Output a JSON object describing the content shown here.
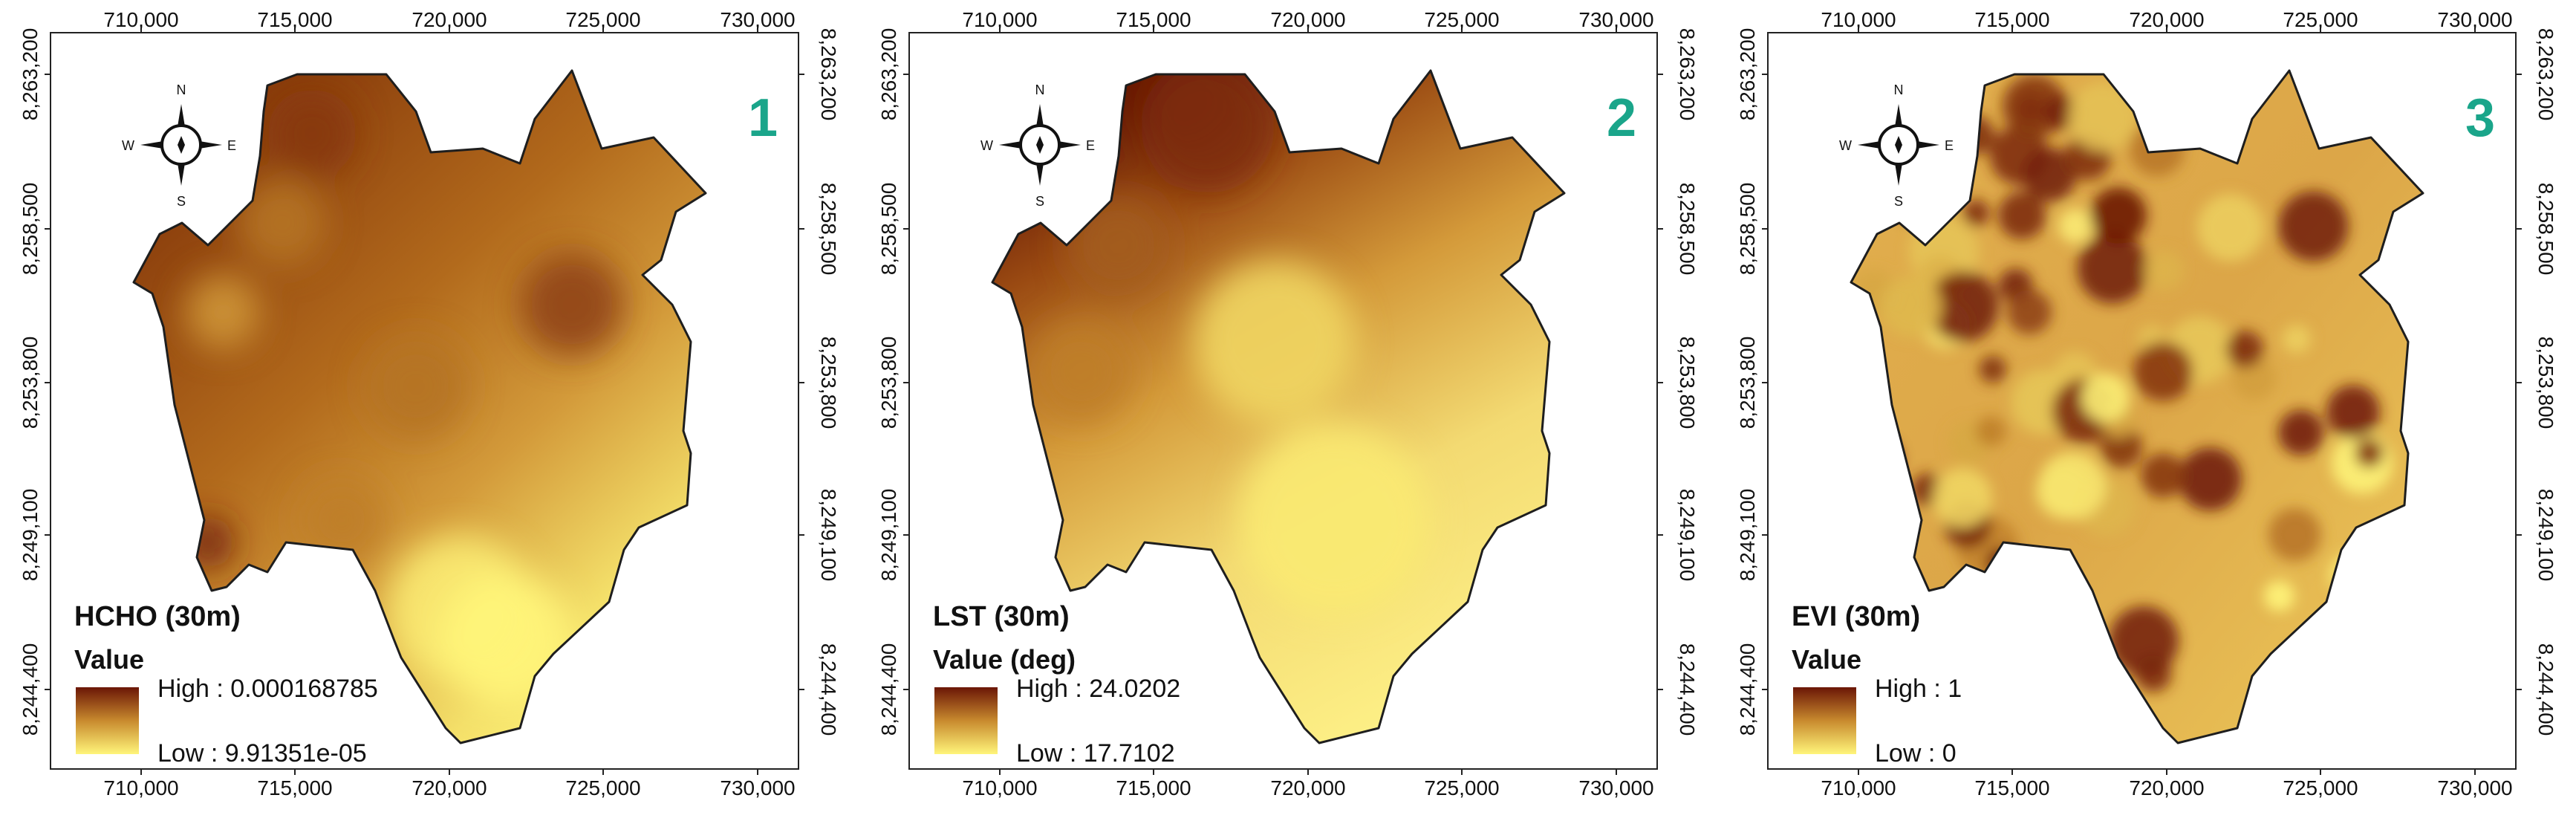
{
  "maps": [
    {
      "number": "1",
      "layer_title": "HCHO (30m)",
      "legend_label": "Value",
      "high_label": "High : 0.000168785",
      "low_label": "Low : 9.91351e-05",
      "variant": "hcho"
    },
    {
      "number": "2",
      "layer_title": "LST (30m)",
      "legend_label": "Value (deg)",
      "high_label": "High : 24.0202",
      "low_label": "Low : 17.7102",
      "variant": "lst"
    },
    {
      "number": "3",
      "layer_title": "EVI (30m)",
      "legend_label": "Value",
      "high_label": "High : 1",
      "low_label": "Low : 0",
      "variant": "evi"
    }
  ],
  "x_ticks": [
    "710,000",
    "715,000",
    "720,000",
    "725,000",
    "730,000"
  ],
  "y_ticks": [
    "8,263,200",
    "8,258,500",
    "8,253,800",
    "8,249,100",
    "8,244,400"
  ],
  "compass": {
    "n": "N",
    "s": "S",
    "e": "E",
    "w": "W"
  },
  "colors": {
    "high": "#6b1606",
    "mid": "#c88a2e",
    "low": "#fff57a",
    "number": "#1aa58a"
  }
}
